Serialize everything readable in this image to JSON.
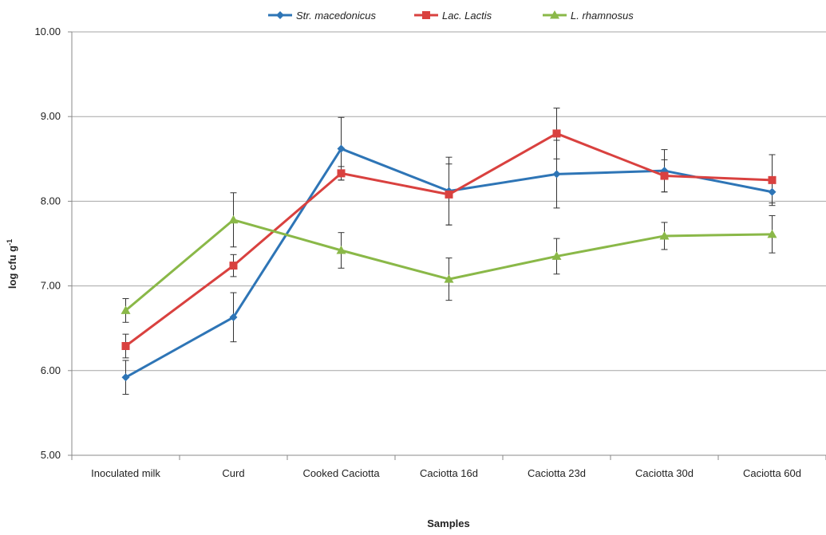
{
  "chart_data": {
    "type": "line",
    "title": "",
    "xlabel": "Samples",
    "ylabel": "log cfu g",
    "ylabel_superscript": "-1",
    "ylim": [
      5.0,
      10.0
    ],
    "yticks": [
      "5.00",
      "6.00",
      "7.00",
      "8.00",
      "9.00",
      "10.00"
    ],
    "ytick_values": [
      5,
      6,
      7,
      8,
      9,
      10
    ],
    "grid": "horizontal",
    "legend_position": "top",
    "categories": [
      "Inoculated milk",
      "Curd",
      "Cooked Caciotta",
      "Caciotta 16d",
      "Caciotta 23d",
      "Caciotta 30d",
      "Caciotta 60d"
    ],
    "series": [
      {
        "name": "Str. macedonicus",
        "color": "#2e75b6",
        "marker": "diamond",
        "values": [
          5.92,
          6.63,
          8.62,
          8.12,
          8.32,
          8.36,
          8.11
        ],
        "errors": [
          0.2,
          0.29,
          0.37,
          0.4,
          0.4,
          0.25,
          0.13
        ]
      },
      {
        "name": "Lac. Lactis",
        "color": "#d9413f",
        "marker": "square",
        "values": [
          6.29,
          7.24,
          8.33,
          8.08,
          8.8,
          8.3,
          8.25
        ],
        "errors": [
          0.14,
          0.13,
          0.08,
          0.36,
          0.3,
          0.19,
          0.3
        ]
      },
      {
        "name": "L. rhamnosus",
        "color": "#8ab848",
        "marker": "triangle",
        "values": [
          6.71,
          7.78,
          7.42,
          7.08,
          7.35,
          7.59,
          7.61
        ],
        "errors": [
          0.14,
          0.32,
          0.21,
          0.25,
          0.21,
          0.16,
          0.22
        ]
      }
    ]
  }
}
